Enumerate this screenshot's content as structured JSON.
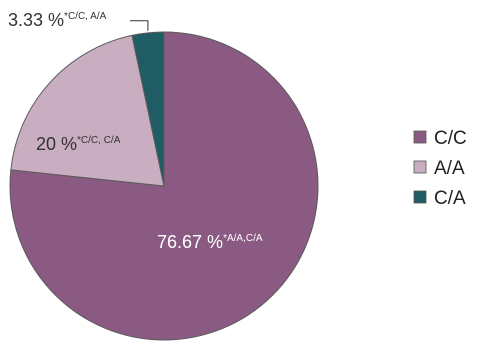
{
  "chart_data": {
    "type": "pie",
    "title": "",
    "slices": [
      {
        "label": "C/C",
        "value": 76.67,
        "value_text": "76.67 %",
        "note": "*A/A,C/A",
        "color": "#8b5a83"
      },
      {
        "label": "A/A",
        "value": 20.0,
        "value_text": "20 %",
        "note": "*C/C, C/A",
        "color": "#c9adc1"
      },
      {
        "label": "C/A",
        "value": 3.33,
        "value_text": "3.33 %",
        "note": "*C/C, A/A",
        "color": "#1f5c63"
      }
    ],
    "legend": {
      "placement": "right",
      "entries": [
        "C/C",
        "A/A",
        "C/A"
      ]
    }
  }
}
